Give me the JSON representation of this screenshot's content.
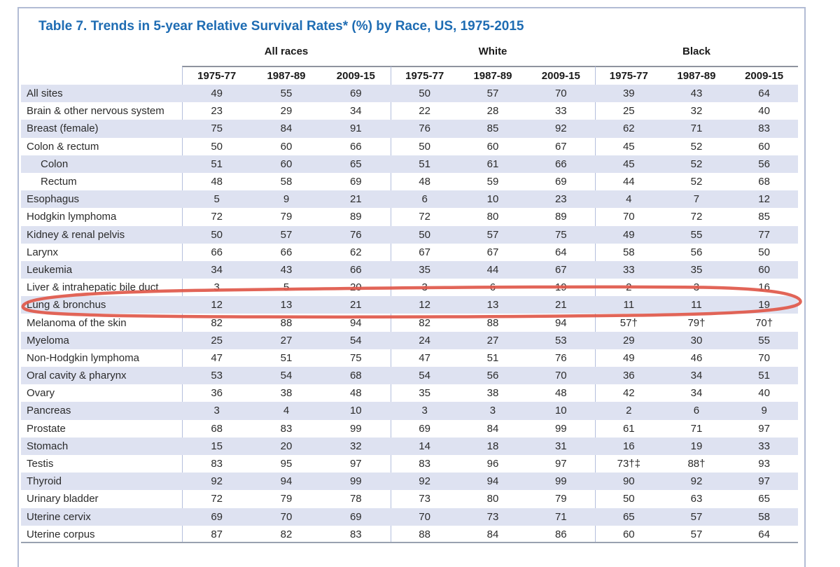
{
  "title": "Table 7. Trends in 5-year Relative Survival Rates* (%) by Race, US, 1975-2015",
  "groups": [
    "All races",
    "White",
    "Black"
  ],
  "period_columns": [
    "1975-77",
    "1987-89",
    "2009-15",
    "1975-77",
    "1987-89",
    "2009-15",
    "1975-77",
    "1987-89",
    "2009-15"
  ],
  "rows": [
    {
      "label": "All sites",
      "indent": false,
      "values": [
        "49",
        "55",
        "69",
        "50",
        "57",
        "70",
        "39",
        "43",
        "64"
      ]
    },
    {
      "label": "Brain & other nervous system",
      "indent": false,
      "values": [
        "23",
        "29",
        "34",
        "22",
        "28",
        "33",
        "25",
        "32",
        "40"
      ]
    },
    {
      "label": "Breast (female)",
      "indent": false,
      "values": [
        "75",
        "84",
        "91",
        "76",
        "85",
        "92",
        "62",
        "71",
        "83"
      ]
    },
    {
      "label": "Colon & rectum",
      "indent": false,
      "values": [
        "50",
        "60",
        "66",
        "50",
        "60",
        "67",
        "45",
        "52",
        "60"
      ]
    },
    {
      "label": "Colon",
      "indent": true,
      "values": [
        "51",
        "60",
        "65",
        "51",
        "61",
        "66",
        "45",
        "52",
        "56"
      ]
    },
    {
      "label": "Rectum",
      "indent": true,
      "values": [
        "48",
        "58",
        "69",
        "48",
        "59",
        "69",
        "44",
        "52",
        "68"
      ]
    },
    {
      "label": "Esophagus",
      "indent": false,
      "values": [
        "5",
        "9",
        "21",
        "6",
        "10",
        "23",
        "4",
        "7",
        "12"
      ]
    },
    {
      "label": "Hodgkin lymphoma",
      "indent": false,
      "values": [
        "72",
        "79",
        "89",
        "72",
        "80",
        "89",
        "70",
        "72",
        "85"
      ]
    },
    {
      "label": "Kidney & renal pelvis",
      "indent": false,
      "values": [
        "50",
        "57",
        "76",
        "50",
        "57",
        "75",
        "49",
        "55",
        "77"
      ]
    },
    {
      "label": "Larynx",
      "indent": false,
      "values": [
        "66",
        "66",
        "62",
        "67",
        "67",
        "64",
        "58",
        "56",
        "50"
      ]
    },
    {
      "label": "Leukemia",
      "indent": false,
      "values": [
        "34",
        "43",
        "66",
        "35",
        "44",
        "67",
        "33",
        "35",
        "60"
      ]
    },
    {
      "label": "Liver & intrahepatic bile duct",
      "indent": false,
      "values": [
        "3",
        "5",
        "20",
        "3",
        "6",
        "19",
        "2",
        "3",
        "16"
      ]
    },
    {
      "label": "Lung & bronchus",
      "indent": false,
      "values": [
        "12",
        "13",
        "21",
        "12",
        "13",
        "21",
        "11",
        "11",
        "19"
      ]
    },
    {
      "label": "Melanoma of the skin",
      "indent": false,
      "values": [
        "82",
        "88",
        "94",
        "82",
        "88",
        "94",
        "57†",
        "79†",
        "70†"
      ]
    },
    {
      "label": "Myeloma",
      "indent": false,
      "values": [
        "25",
        "27",
        "54",
        "24",
        "27",
        "53",
        "29",
        "30",
        "55"
      ]
    },
    {
      "label": "Non-Hodgkin lymphoma",
      "indent": false,
      "values": [
        "47",
        "51",
        "75",
        "47",
        "51",
        "76",
        "49",
        "46",
        "70"
      ]
    },
    {
      "label": "Oral cavity & pharynx",
      "indent": false,
      "values": [
        "53",
        "54",
        "68",
        "54",
        "56",
        "70",
        "36",
        "34",
        "51"
      ]
    },
    {
      "label": "Ovary",
      "indent": false,
      "values": [
        "36",
        "38",
        "48",
        "35",
        "38",
        "48",
        "42",
        "34",
        "40"
      ]
    },
    {
      "label": "Pancreas",
      "indent": false,
      "values": [
        "3",
        "4",
        "10",
        "3",
        "3",
        "10",
        "2",
        "6",
        "9"
      ]
    },
    {
      "label": "Prostate",
      "indent": false,
      "values": [
        "68",
        "83",
        "99",
        "69",
        "84",
        "99",
        "61",
        "71",
        "97"
      ]
    },
    {
      "label": "Stomach",
      "indent": false,
      "values": [
        "15",
        "20",
        "32",
        "14",
        "18",
        "31",
        "16",
        "19",
        "33"
      ]
    },
    {
      "label": "Testis",
      "indent": false,
      "values": [
        "83",
        "95",
        "97",
        "83",
        "96",
        "97",
        "73†‡",
        "88†",
        "93"
      ]
    },
    {
      "label": "Thyroid",
      "indent": false,
      "values": [
        "92",
        "94",
        "99",
        "92",
        "94",
        "99",
        "90",
        "92",
        "97"
      ]
    },
    {
      "label": "Urinary bladder",
      "indent": false,
      "values": [
        "72",
        "79",
        "78",
        "73",
        "80",
        "79",
        "50",
        "63",
        "65"
      ]
    },
    {
      "label": "Uterine cervix",
      "indent": false,
      "values": [
        "69",
        "70",
        "69",
        "70",
        "73",
        "71",
        "65",
        "57",
        "58"
      ]
    },
    {
      "label": "Uterine corpus",
      "indent": false,
      "values": [
        "87",
        "82",
        "83",
        "88",
        "84",
        "86",
        "60",
        "57",
        "64"
      ]
    }
  ],
  "annotation": {
    "type": "hand-drawn-ellipse",
    "target_row": "Lung & bronchus",
    "color": "#e0584a"
  },
  "colors": {
    "title_blue": "#1e6cb3",
    "row_stripe": "#dee2f1",
    "grid_line": "#b3bedc",
    "header_rule": "#8e939e",
    "bottom_rule": "#99a1b0",
    "frame_border": "#b2bcd4",
    "text": "#2b2b2b"
  }
}
